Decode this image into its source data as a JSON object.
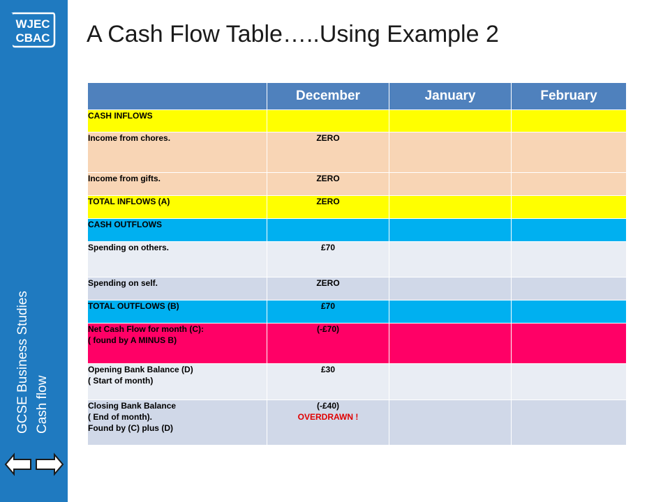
{
  "branding": {
    "logo_line1": "WJEC",
    "logo_line2": "CBAC"
  },
  "sidebar": {
    "subject": "GCSE Business Studies",
    "topic": "Cash flow"
  },
  "slide": {
    "title": "A Cash Flow Table…..Using Example 2"
  },
  "table": {
    "headers": [
      "",
      "December",
      "January",
      "February"
    ],
    "rows": [
      {
        "label": [
          "CASH INFLOWS"
        ],
        "december": []
      },
      {
        "label": [
          "Income from chores."
        ],
        "december": [
          "ZERO"
        ]
      },
      {
        "label": [
          "Income from gifts."
        ],
        "december": [
          "ZERO"
        ]
      },
      {
        "label": [
          "TOTAL INFLOWS (A)"
        ],
        "december": [
          "ZERO"
        ]
      },
      {
        "label": [
          "CASH OUTFLOWS"
        ],
        "december": []
      },
      {
        "label": [
          "Spending on others."
        ],
        "december": [
          "£70"
        ]
      },
      {
        "label": [
          "Spending on self."
        ],
        "december": [
          "ZERO"
        ]
      },
      {
        "label": [
          "TOTAL OUTFLOWS (B)"
        ],
        "december": [
          "£70"
        ]
      },
      {
        "label": [
          "Net Cash Flow for month (C):",
          "( found by  A MINUS B)"
        ],
        "december": [
          "(-£70)"
        ]
      },
      {
        "label": [
          "Opening Bank Balance (D)",
          "( Start of month)"
        ],
        "december": [
          "£30"
        ]
      },
      {
        "label": [
          "Closing Bank Balance",
          "( End of month).",
          "Found by (C) plus (D)"
        ],
        "december": [
          "(-£40)",
          "OVERDRAWN !"
        ]
      }
    ]
  },
  "colors": {
    "sidebar": "#1f7ac0",
    "header": "#4f81bd",
    "totals_inflow": "#ffff00",
    "inflow_rows": "#f8d5b5",
    "outflow_header": "#00b0f0",
    "net_cash_flow": "#ff0066",
    "overdrawn_text": "#e00000"
  },
  "icons": {
    "back": "left-arrow-icon",
    "forward": "right-arrow-icon"
  }
}
